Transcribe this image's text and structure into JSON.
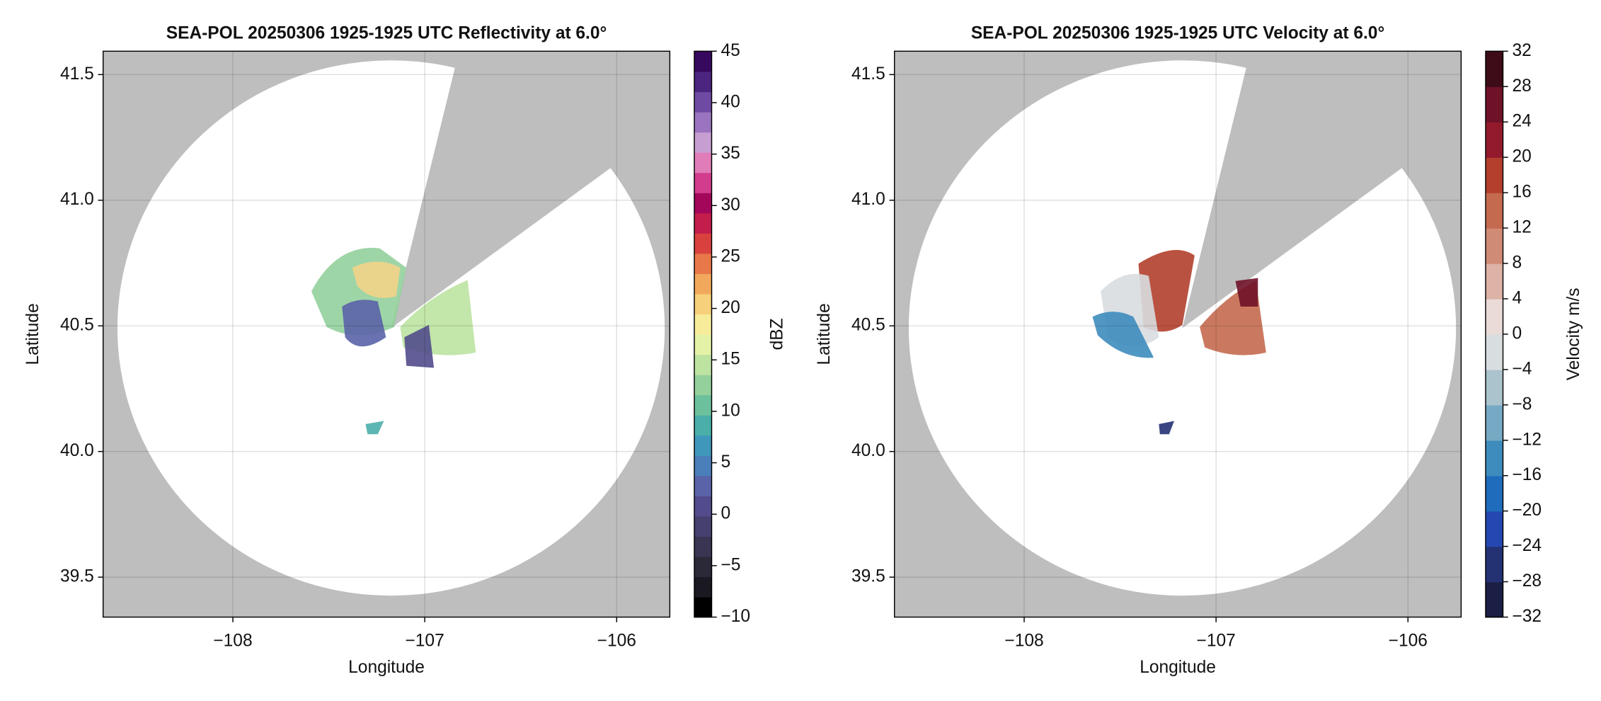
{
  "chart_data": [
    {
      "type": "radar-ppi",
      "title": "SEA-POL 20250306 1925-1925 UTC Reflectivity at 6.0°",
      "xlabel": "Longitude",
      "ylabel": "Latitude",
      "xlim": [
        -108.676,
        -105.723
      ],
      "ylim": [
        39.341,
        41.593
      ],
      "xticks": [
        {
          "value": -108,
          "label": "−108"
        },
        {
          "value": -107,
          "label": "−107"
        },
        {
          "value": -106,
          "label": "−106"
        }
      ],
      "yticks": [
        39.5,
        {
          "value": 40,
          "label": "40.0"
        },
        40.5,
        {
          "value": 41,
          "label": "41.0"
        },
        41.5
      ],
      "grid": true,
      "colorbar": {
        "label": "dBZ",
        "lim": [
          -10,
          45
        ],
        "ticks": [
          {
            "value": -10,
            "label": "−10"
          },
          {
            "value": -5,
            "label": "−5"
          },
          0,
          5,
          10,
          15,
          20,
          25,
          30,
          35,
          40,
          45
        ],
        "colors": [
          "#000000",
          "#1a1820",
          "#2b2938",
          "#3a3552",
          "#46406e",
          "#524c8c",
          "#5a63a8",
          "#4a7fba",
          "#3f97bb",
          "#4aaea9",
          "#6cc09c",
          "#94d09c",
          "#bde3a1",
          "#e4f2a7",
          "#f7ec9a",
          "#f6d07a",
          "#f2a85c",
          "#e8784a",
          "#d9413f",
          "#c31d4b",
          "#a3075a",
          "#d23c8c",
          "#e07cb8",
          "#c79ed2",
          "#9a74bf",
          "#6f4aa3",
          "#4c2580",
          "#36095e"
        ]
      }
    },
    {
      "type": "radar-ppi",
      "title": "SEA-POL 20250306 1925-1925 UTC Velocity at 6.0°",
      "xlabel": "Longitude",
      "ylabel": "Latitude",
      "xlim": [
        -108.676,
        -105.723
      ],
      "ylim": [
        39.341,
        41.593
      ],
      "xticks": [
        {
          "value": -108,
          "label": "−108"
        },
        {
          "value": -107,
          "label": "−107"
        },
        {
          "value": -106,
          "label": "−106"
        }
      ],
      "yticks": [
        39.5,
        {
          "value": 40,
          "label": "40.0"
        },
        40.5,
        {
          "value": 41,
          "label": "41.0"
        },
        41.5
      ],
      "grid": true,
      "colorbar": {
        "label": "Velocity m/s",
        "lim": [
          -32,
          32
        ],
        "ticks": [
          {
            "value": -32,
            "label": "−32"
          },
          {
            "value": -28,
            "label": "−28"
          },
          {
            "value": -24,
            "label": "−24"
          },
          {
            "value": -20,
            "label": "−20"
          },
          {
            "value": -16,
            "label": "−16"
          },
          {
            "value": -12,
            "label": "−12"
          },
          {
            "value": -8,
            "label": "−8"
          },
          {
            "value": -4,
            "label": "−4"
          },
          0,
          4,
          8,
          12,
          16,
          20,
          24,
          28,
          32
        ],
        "colors": [
          "#1b1f45",
          "#243274",
          "#2448b0",
          "#1f6cbd",
          "#3d8cbd",
          "#76a9c3",
          "#aac3cd",
          "#d8dde0",
          "#eadbd8",
          "#dcb3a6",
          "#d08b74",
          "#c46a4f",
          "#b33f2c",
          "#921a2c",
          "#6f1228",
          "#3d0c18"
        ]
      }
    }
  ]
}
